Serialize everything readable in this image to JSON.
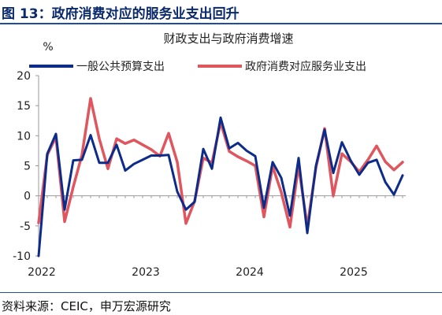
{
  "figure_title": "图 13：政府消费对应的服务业支出回升",
  "source": "资料来源：CEIC，申万宏源研究",
  "colors": {
    "title": "#0a2a6c",
    "rule": "#1f4e9e",
    "series1": "#0d2c8a",
    "series2": "#e0565e",
    "axis": "#999999"
  },
  "chart_data": {
    "type": "line",
    "title": "财政支出与政府消费增速",
    "ylabel": "%",
    "xlabel": "",
    "ylim": [
      -10,
      20
    ],
    "yticks": [
      -10,
      -5,
      0,
      5,
      10,
      15,
      20
    ],
    "xticks": [
      {
        "label": "2022",
        "x": 0
      },
      {
        "label": "2023",
        "x": 12
      },
      {
        "label": "2024",
        "x": 24
      },
      {
        "label": "2025",
        "x": 36
      }
    ],
    "xlim": [
      0,
      42
    ],
    "grid": false,
    "legend": "top",
    "series": [
      {
        "name": "一般公共预算支出",
        "color": "#0d2c8a",
        "x": [
          0,
          1,
          2,
          3,
          4,
          5,
          6,
          7,
          8,
          9,
          10,
          11,
          12,
          13,
          14,
          15,
          16,
          17,
          18,
          19,
          20,
          21,
          22,
          23,
          24,
          25,
          26,
          27,
          28,
          29,
          30,
          31,
          32,
          33,
          34,
          35,
          36,
          37,
          38,
          39,
          40,
          41,
          42
        ],
        "values": [
          -10,
          7,
          10.3,
          -2.3,
          5.9,
          6,
          10.1,
          5.5,
          5.5,
          8.5,
          4.2,
          5.3,
          6,
          6.7,
          6.7,
          6.8,
          0.7,
          -2.3,
          -1,
          7.8,
          4.5,
          13,
          7.9,
          8.8,
          7.5,
          6.6,
          -2,
          5.6,
          3,
          -3.3,
          6.3,
          -6.2,
          5,
          11,
          3.8,
          8.9,
          5.9,
          3.5,
          5.5,
          6,
          2.3,
          0.2,
          3.4
        ]
      },
      {
        "name": "政府消费对应服务业支出",
        "color": "#e0565e",
        "x": [
          0,
          1,
          2,
          3,
          4,
          5,
          6,
          7,
          8,
          9,
          10,
          11,
          12,
          13,
          14,
          15,
          16,
          17,
          18,
          19,
          20,
          21,
          22,
          23,
          24,
          25,
          26,
          27,
          28,
          29,
          30,
          31,
          32,
          33,
          34,
          35,
          36,
          37,
          38,
          39,
          40,
          41,
          42
        ],
        "values": [
          -4.5,
          6.8,
          9.8,
          -4.3,
          1.5,
          6.8,
          16.2,
          9.5,
          4.5,
          9.5,
          8.7,
          9.3,
          8.5,
          7.7,
          6.6,
          10.4,
          5.6,
          -4.6,
          -0.9,
          6.3,
          5.5,
          12.2,
          7.4,
          6.5,
          5.8,
          5,
          -3.5,
          4.9,
          0.6,
          -5.2,
          5,
          -5.1,
          4.7,
          11.2,
          0,
          7,
          5.7,
          4,
          6,
          8.3,
          5.7,
          4.3,
          5.6
        ]
      }
    ]
  }
}
